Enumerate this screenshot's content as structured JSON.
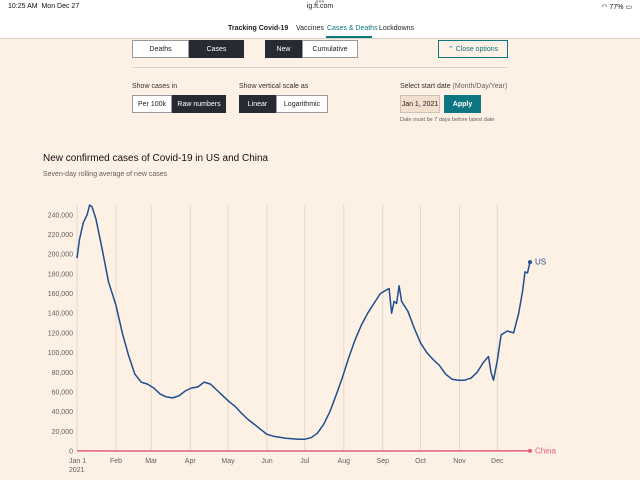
{
  "status_bar": {
    "time": "10:25 AM",
    "date": "Mon Dec 27",
    "url": "ig.ft.com",
    "battery": "77%"
  },
  "nav": {
    "dots": "•••",
    "items": [
      "Tracking Covid-19",
      "Vaccines",
      "Cases & Deaths",
      "Lockdowns"
    ],
    "active": "Cases & Deaths"
  },
  "controls": {
    "metric": {
      "options": [
        "Deaths",
        "Cases"
      ],
      "selected": "Cases"
    },
    "mode": {
      "options": [
        "New",
        "Cumulative"
      ],
      "selected": "New"
    },
    "close_options": "Close options",
    "show_cases_in": {
      "label": "Show cases in",
      "options": [
        "Per 100k",
        "Raw numbers"
      ],
      "selected": "Raw numbers"
    },
    "vertical_scale": {
      "label": "Show vertical scale as",
      "options": [
        "Linear",
        "Logarithmic"
      ],
      "selected": "Linear"
    },
    "start_date": {
      "label": "Select start date",
      "format_hint": "(Month/Day/Year)",
      "value": "Jan 1, 2021",
      "apply": "Apply",
      "note": "Date must be 7 days before latest date"
    }
  },
  "chart_data": {
    "type": "line",
    "title": "New confirmed cases of Covid-19 in US and China",
    "subtitle": "Seven-day rolling average of new cases",
    "xlabel": "",
    "ylabel": "",
    "x_ticks": [
      "Jan 1\n2021",
      "Feb",
      "Mar",
      "Apr",
      "May",
      "Jun",
      "Jul",
      "Aug",
      "Sep",
      "Oct",
      "Nov",
      "Dec"
    ],
    "y_ticks": [
      "0",
      "20,000",
      "40,000",
      "60,000",
      "80,000",
      "100,000",
      "120,000",
      "140,000",
      "160,000",
      "180,000",
      "200,000",
      "220,000",
      "240,000"
    ],
    "ylim": [
      0,
      250000
    ],
    "xlim": [
      "2021-01-01",
      "2021-12-27"
    ],
    "grid": "vertical",
    "colors": {
      "US": "#1f4e8c",
      "China": "#e05f7e",
      "grid": "#e3d7cc",
      "baseline": "#66605c"
    },
    "series": [
      {
        "name": "US",
        "points": [
          [
            "2021-01-01",
            196000
          ],
          [
            "2021-01-03",
            215000
          ],
          [
            "2021-01-06",
            232000
          ],
          [
            "2021-01-09",
            240000
          ],
          [
            "2021-01-11",
            250000
          ],
          [
            "2021-01-13",
            248000
          ],
          [
            "2021-01-16",
            236000
          ],
          [
            "2021-01-21",
            205000
          ],
          [
            "2021-01-26",
            172000
          ],
          [
            "2021-02-01",
            148000
          ],
          [
            "2021-02-06",
            120000
          ],
          [
            "2021-02-11",
            97000
          ],
          [
            "2021-02-16",
            78000
          ],
          [
            "2021-02-21",
            70000
          ],
          [
            "2021-02-26",
            68000
          ],
          [
            "2021-03-03",
            64000
          ],
          [
            "2021-03-08",
            58000
          ],
          [
            "2021-03-13",
            55000
          ],
          [
            "2021-03-18",
            54000
          ],
          [
            "2021-03-23",
            56000
          ],
          [
            "2021-03-28",
            61000
          ],
          [
            "2021-04-02",
            64000
          ],
          [
            "2021-04-07",
            65000
          ],
          [
            "2021-04-12",
            70000
          ],
          [
            "2021-04-17",
            68000
          ],
          [
            "2021-04-22",
            62000
          ],
          [
            "2021-04-27",
            56000
          ],
          [
            "2021-05-02",
            50000
          ],
          [
            "2021-05-07",
            45000
          ],
          [
            "2021-05-12",
            38000
          ],
          [
            "2021-05-17",
            32000
          ],
          [
            "2021-05-22",
            27000
          ],
          [
            "2021-05-27",
            22000
          ],
          [
            "2021-06-01",
            17000
          ],
          [
            "2021-06-06",
            15000
          ],
          [
            "2021-06-11",
            14000
          ],
          [
            "2021-06-16",
            13000
          ],
          [
            "2021-06-21",
            12500
          ],
          [
            "2021-06-26",
            12000
          ],
          [
            "2021-07-01",
            12000
          ],
          [
            "2021-07-06",
            13500
          ],
          [
            "2021-07-11",
            18000
          ],
          [
            "2021-07-16",
            27000
          ],
          [
            "2021-07-21",
            40000
          ],
          [
            "2021-07-26",
            57000
          ],
          [
            "2021-07-31",
            75000
          ],
          [
            "2021-08-05",
            95000
          ],
          [
            "2021-08-10",
            113000
          ],
          [
            "2021-08-15",
            128000
          ],
          [
            "2021-08-20",
            140000
          ],
          [
            "2021-08-25",
            150000
          ],
          [
            "2021-08-30",
            160000
          ],
          [
            "2021-09-03",
            163000
          ],
          [
            "2021-09-06",
            165000
          ],
          [
            "2021-09-08",
            140000
          ],
          [
            "2021-09-10",
            152000
          ],
          [
            "2021-09-12",
            150000
          ],
          [
            "2021-09-14",
            168000
          ],
          [
            "2021-09-16",
            152000
          ],
          [
            "2021-09-21",
            142000
          ],
          [
            "2021-09-26",
            125000
          ],
          [
            "2021-10-01",
            110000
          ],
          [
            "2021-10-06",
            100000
          ],
          [
            "2021-10-11",
            93000
          ],
          [
            "2021-10-16",
            87000
          ],
          [
            "2021-10-21",
            78000
          ],
          [
            "2021-10-26",
            73000
          ],
          [
            "2021-10-31",
            72000
          ],
          [
            "2021-11-05",
            72000
          ],
          [
            "2021-11-10",
            74000
          ],
          [
            "2021-11-15",
            80000
          ],
          [
            "2021-11-20",
            90000
          ],
          [
            "2021-11-24",
            96000
          ],
          [
            "2021-11-26",
            80000
          ],
          [
            "2021-11-28",
            72000
          ],
          [
            "2021-12-01",
            92000
          ],
          [
            "2021-12-04",
            118000
          ],
          [
            "2021-12-09",
            122000
          ],
          [
            "2021-12-14",
            120000
          ],
          [
            "2021-12-18",
            140000
          ],
          [
            "2021-12-21",
            162000
          ],
          [
            "2021-12-23",
            182000
          ],
          [
            "2021-12-25",
            181000
          ],
          [
            "2021-12-27",
            192000
          ]
        ]
      },
      {
        "name": "China",
        "points": [
          [
            "2021-01-01",
            80
          ],
          [
            "2021-03-01",
            15
          ],
          [
            "2021-06-01",
            20
          ],
          [
            "2021-09-01",
            40
          ],
          [
            "2021-12-27",
            100
          ]
        ]
      }
    ]
  }
}
